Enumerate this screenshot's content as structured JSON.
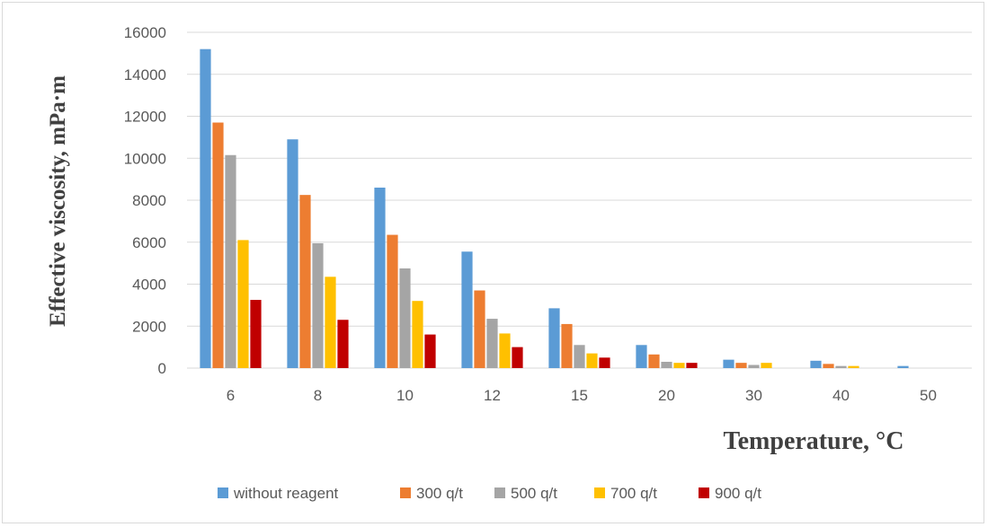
{
  "chart_data": {
    "type": "bar",
    "title": "",
    "xlabel": "Temperature, °C",
    "ylabel": "Effective viscosity, mPa·m",
    "categories": [
      "6",
      "8",
      "10",
      "12",
      "15",
      "20",
      "30",
      "40",
      "50"
    ],
    "ylim": [
      0,
      16000
    ],
    "yticks": [
      0,
      2000,
      4000,
      6000,
      8000,
      10000,
      12000,
      14000,
      16000
    ],
    "grid": true,
    "legend_position": "bottom",
    "series": [
      {
        "name": "without reagent",
        "color": "#5b9bd5",
        "values": [
          15200,
          10900,
          8600,
          5550,
          2850,
          1100,
          400,
          350,
          100
        ]
      },
      {
        "name": "300 q/t",
        "color": "#ed7d31",
        "values": [
          11700,
          8250,
          6350,
          3700,
          2100,
          650,
          250,
          200,
          0
        ]
      },
      {
        "name": "500 q/t",
        "color": "#a5a5a5",
        "values": [
          10150,
          5950,
          4750,
          2350,
          1100,
          300,
          150,
          100,
          0
        ]
      },
      {
        "name": "700 q/t",
        "color": "#ffc000",
        "values": [
          6100,
          4350,
          3200,
          1650,
          700,
          250,
          250,
          100,
          0
        ]
      },
      {
        "name": "900 q/t",
        "color": "#c00000",
        "values": [
          3250,
          2300,
          1600,
          1000,
          500,
          250,
          0,
          0,
          0
        ]
      }
    ]
  }
}
